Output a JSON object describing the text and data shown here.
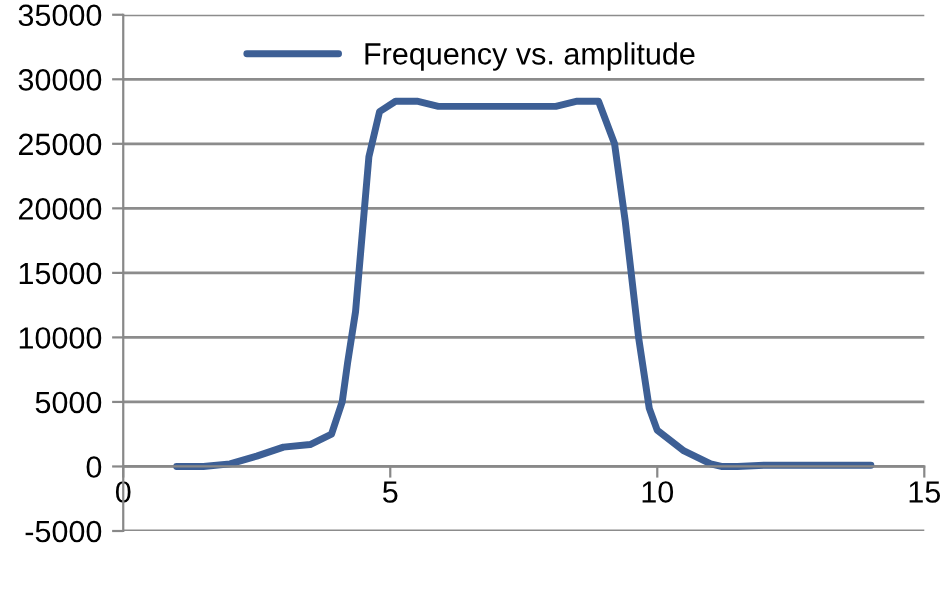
{
  "chart_data": {
    "type": "line",
    "xlim": [
      0,
      15
    ],
    "xticks": [
      0,
      5,
      10,
      15
    ],
    "ylim": [
      -5000,
      35000
    ],
    "yticks": [
      -5000,
      0,
      5000,
      10000,
      15000,
      20000,
      25000,
      30000,
      35000
    ],
    "grid": "y",
    "legend": "top left",
    "marker": "none",
    "line_style": "solid",
    "series": [
      {
        "name": "Frequency vs. amplitude",
        "color": "#3d5f95",
        "x": [
          1,
          1.5,
          2,
          2.5,
          3,
          3.5,
          3.9,
          4.1,
          4.2,
          4.35,
          4.6,
          4.8,
          5.1,
          5.5,
          5.9,
          7,
          8.1,
          8.5,
          8.9,
          9.2,
          9.4,
          9.65,
          9.85,
          10,
          10.5,
          11,
          11.2,
          11.5,
          12,
          13,
          14
        ],
        "values": [
          0,
          0,
          200,
          800,
          1500,
          1700,
          2500,
          5000,
          8000,
          12000,
          24000,
          27500,
          28300,
          28300,
          27900,
          27900,
          27900,
          28300,
          28300,
          25000,
          19000,
          10000,
          4500,
          2800,
          1200,
          200,
          0,
          0,
          100,
          100,
          100
        ]
      }
    ]
  }
}
